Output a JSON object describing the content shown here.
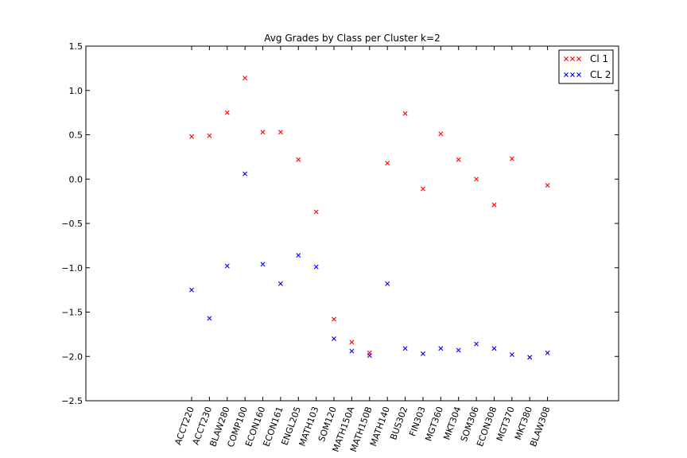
{
  "chart_data": {
    "type": "scatter",
    "title": "Avg Grades by Class per Cluster k=2",
    "xlabel": "",
    "ylabel": "",
    "categories": [
      "ACCT220",
      "ACCT230",
      "BLAW280",
      "COMP100",
      "ECON160",
      "ECON161",
      "ENGL205",
      "MATH103",
      "SOM120",
      "MATH150A",
      "MATH150B",
      "MATH140",
      "BUS302",
      "FIN303",
      "MGT360",
      "MKT304",
      "SOM306",
      "ECON308",
      "MGT370",
      "MKT380",
      "BLAW308"
    ],
    "ylim": [
      -2.5,
      1.5
    ],
    "yticks": [
      "1.5",
      "1.0",
      "0.5",
      "0.0",
      "−0.5",
      "−1.0",
      "−1.5",
      "−2.0",
      "−2.5"
    ],
    "ytick_values": [
      1.5,
      1.0,
      0.5,
      0.0,
      -0.5,
      -1.0,
      -1.5,
      -2.0,
      -2.5
    ],
    "grid": false,
    "legend_position": "top-right",
    "series": [
      {
        "name": "Cl 1",
        "color": "#ff0000",
        "marker": "x",
        "values": [
          0.48,
          0.49,
          0.75,
          1.14,
          0.53,
          0.53,
          0.22,
          -0.37,
          -1.58,
          -1.84,
          -1.96,
          0.18,
          0.74,
          -0.11,
          0.51,
          0.22,
          0.0,
          -0.29,
          0.23,
          -2.01,
          -0.07
        ]
      },
      {
        "name": "CL 2",
        "color": "#0000ff",
        "marker": "x",
        "values": [
          -1.25,
          -1.57,
          -0.98,
          0.06,
          -0.96,
          -1.18,
          -0.86,
          -0.99,
          -1.8,
          -1.94,
          -1.99,
          -1.18,
          -1.91,
          -1.97,
          -1.91,
          -1.93,
          -1.86,
          -1.91,
          -1.98,
          -2.01,
          -1.96
        ]
      }
    ]
  }
}
